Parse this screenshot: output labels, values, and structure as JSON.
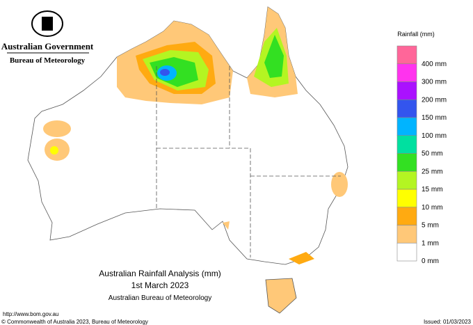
{
  "header": {
    "government": "Australian Government",
    "bureau": "Bureau of Meteorology"
  },
  "legend": {
    "title": "Rainfall (mm)",
    "items": [
      {
        "label": "400 mm",
        "color": "#ff6699"
      },
      {
        "label": "300 mm",
        "color": "#ff33ee"
      },
      {
        "label": "200 mm",
        "color": "#aa11ff"
      },
      {
        "label": "150 mm",
        "color": "#3355ee"
      },
      {
        "label": "100 mm",
        "color": "#00b4ff"
      },
      {
        "label": "50 mm",
        "color": "#00e0a0"
      },
      {
        "label": "25 mm",
        "color": "#33e022"
      },
      {
        "label": "15 mm",
        "color": "#b4f522"
      },
      {
        "label": "10 mm",
        "color": "#ffff00"
      },
      {
        "label": "5 mm",
        "color": "#ffaa11"
      },
      {
        "label": "1 mm",
        "color": "#ffc878"
      },
      {
        "label": "0 mm",
        "color": "#ffffff"
      }
    ]
  },
  "caption": {
    "title": "Australian Rainfall Analysis (mm)",
    "date": "1st March 2023",
    "source": "Australian Bureau of Meteorology"
  },
  "footer": {
    "url": "http://www.bom.gov.au",
    "copyright": "© Commonwealth of Australia 2023, Bureau of Meteorology",
    "issued": "Issued: 01/03/2023"
  }
}
